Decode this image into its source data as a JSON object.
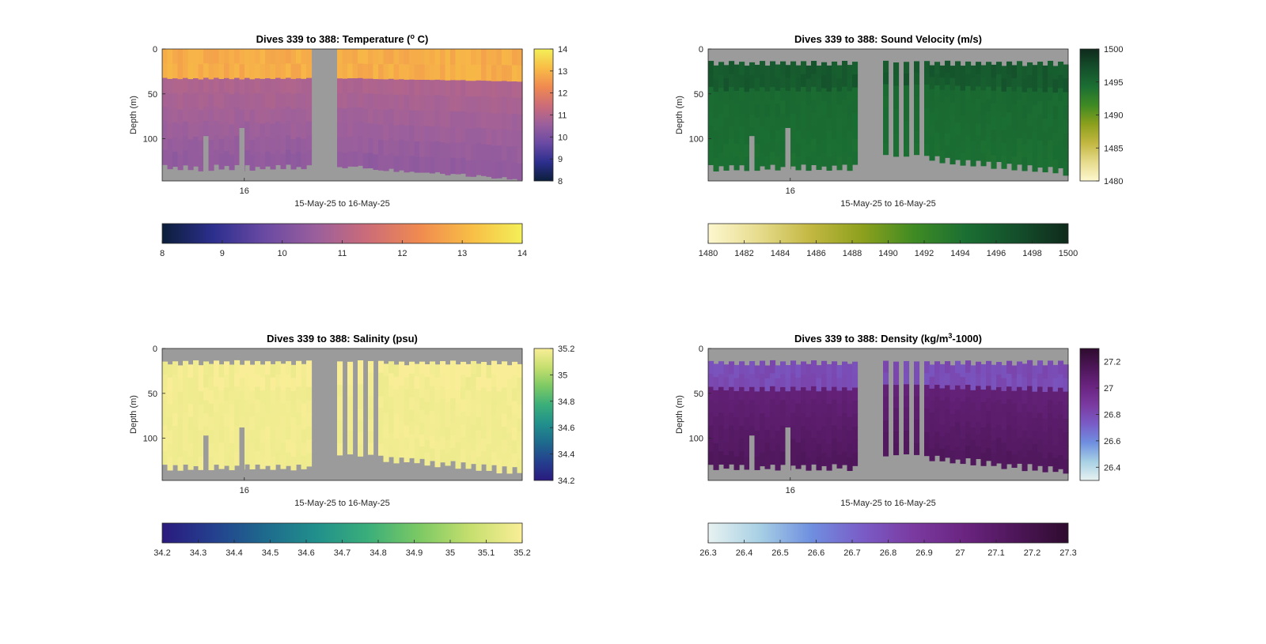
{
  "chart_data": [
    {
      "type": "heatmap",
      "title": "Dives 339 to 388: Temperature (",
      "title_sup": "o",
      "title_end": " C)",
      "xlabel": "15-May-25 to 16-May-25",
      "ylabel": "Depth (m)",
      "x_tick_labels": [
        "16"
      ],
      "y_tick_labels": [
        "0",
        "50",
        "100"
      ],
      "y_ticks": [
        0,
        50,
        100
      ],
      "ylim": [
        0,
        147
      ],
      "clim": [
        8,
        14
      ],
      "side_cbar_ticks": [
        "8",
        "9",
        "10",
        "11",
        "12",
        "13",
        "14"
      ],
      "bottom_cbar_ticks": [
        "8",
        "9",
        "10",
        "11",
        "12",
        "13",
        "14"
      ],
      "colormap": [
        "#0b1e3a",
        "#2d2f8e",
        "#6a4aa3",
        "#9b5f9c",
        "#cc6c78",
        "#f08a50",
        "#f8bd46",
        "#f3ef58"
      ],
      "surface_value": 12.8,
      "mid_value": 11.1,
      "deep_value": 10.4,
      "reverse_cbar_layout": false
    },
    {
      "type": "heatmap",
      "title": "Dives 339 to 388: Sound Velocity (m/s)",
      "xlabel": "15-May-25 to 16-May-25",
      "ylabel": "Depth (m)",
      "x_tick_labels": [
        "16"
      ],
      "y_tick_labels": [
        "0",
        "50",
        "100"
      ],
      "y_ticks": [
        0,
        50,
        100
      ],
      "ylim": [
        0,
        147
      ],
      "clim": [
        1480,
        1500
      ],
      "side_cbar_ticks": [
        "1480",
        "1485",
        "1490",
        "1495",
        "1500"
      ],
      "bottom_cbar_ticks": [
        "1480",
        "1482",
        "1484",
        "1486",
        "1488",
        "1490",
        "1492",
        "1494",
        "1496",
        "1498",
        "1500"
      ],
      "colormap": [
        "#fdf7cf",
        "#e6db8c",
        "#c2b741",
        "#8da01d",
        "#3f8b23",
        "#1b6f33",
        "#144f2b",
        "#0f2a1c"
      ],
      "surface_value": 1496.0,
      "mid_value": 1495.0,
      "deep_value": 1494.3
    },
    {
      "type": "heatmap",
      "title": "Dives 339 to 388: Salinity (psu)",
      "xlabel": "15-May-25 to 16-May-25",
      "ylabel": "Depth (m)",
      "x_tick_labels": [
        "16"
      ],
      "y_tick_labels": [
        "0",
        "50",
        "100"
      ],
      "y_ticks": [
        0,
        50,
        100
      ],
      "ylim": [
        0,
        147
      ],
      "clim": [
        34.2,
        35.2
      ],
      "side_cbar_ticks": [
        "34.2",
        "34.4",
        "34.6",
        "34.8",
        "35",
        "35.2"
      ],
      "bottom_cbar_ticks": [
        "34.2",
        "34.3",
        "34.4",
        "34.5",
        "34.6",
        "34.7",
        "34.8",
        "34.9",
        "35",
        "35.1",
        "35.2"
      ],
      "colormap": [
        "#2a1a7e",
        "#24408e",
        "#1e6a8d",
        "#21908c",
        "#3aae7a",
        "#7cc964",
        "#c6df6e",
        "#f9ee97"
      ],
      "surface_value": 35.18,
      "mid_value": 35.18,
      "deep_value": 35.18
    },
    {
      "type": "heatmap",
      "title": "Dives 339 to 388: Density (kg/m",
      "title_sup": "3",
      "title_end": "-1000)",
      "xlabel": "15-May-25 to 16-May-25",
      "ylabel": "Depth (m)",
      "x_tick_labels": [
        "16"
      ],
      "y_tick_labels": [
        "0",
        "50",
        "100"
      ],
      "y_ticks": [
        0,
        50,
        100
      ],
      "ylim": [
        0,
        147
      ],
      "clim": [
        26.3,
        27.3
      ],
      "side_cbar_ticks": [
        "26.4",
        "26.6",
        "26.8",
        "27",
        "27.2"
      ],
      "side_cbar_values": [
        26.4,
        26.6,
        26.8,
        27,
        27.2
      ],
      "bottom_cbar_ticks": [
        "26.3",
        "26.4",
        "26.5",
        "26.6",
        "26.7",
        "26.8",
        "26.9",
        "27",
        "27.1",
        "27.2",
        "27.3"
      ],
      "colormap": [
        "#e8f2f1",
        "#a7d0e4",
        "#6f8fe0",
        "#7a5cc7",
        "#7a3aa0",
        "#6a2480",
        "#4d1658",
        "#2e0b2e"
      ],
      "surface_value": 26.78,
      "mid_value": 27.02,
      "deep_value": 27.14
    }
  ]
}
